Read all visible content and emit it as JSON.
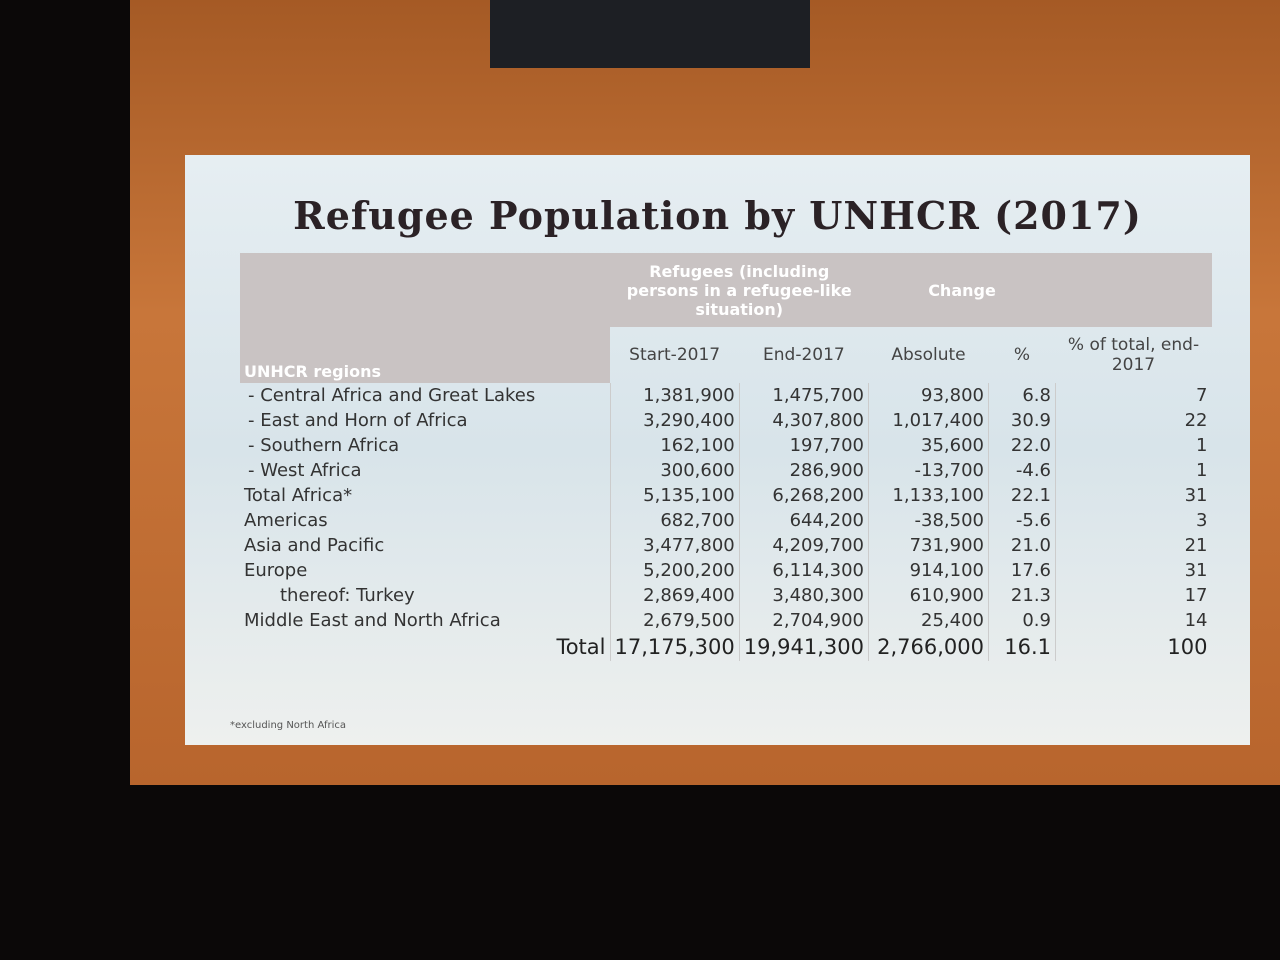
{
  "title": "Refugee Population by UNHCR (2017)",
  "table": {
    "group_headers": {
      "refugees": "Refugees (including persons in a refugee-like situation)",
      "change": "Change"
    },
    "row_header": "UNHCR regions",
    "columns": [
      "Start-2017",
      "End-2017",
      "Absolute",
      "%",
      "% of total, end-2017"
    ],
    "rows": [
      {
        "label": "- Central Africa and Great Lakes",
        "cells": [
          "1,381,900",
          "1,475,700",
          "93,800",
          "6.8",
          "7"
        ]
      },
      {
        "label": "- East and Horn of Africa",
        "cells": [
          "3,290,400",
          "4,307,800",
          "1,017,400",
          "30.9",
          "22"
        ]
      },
      {
        "label": "- Southern Africa",
        "cells": [
          "162,100",
          "197,700",
          "35,600",
          "22.0",
          "1"
        ]
      },
      {
        "label": "- West Africa",
        "cells": [
          "300,600",
          "286,900",
          "-13,700",
          "-4.6",
          "1"
        ]
      },
      {
        "label": "Total Africa*",
        "cells": [
          "5,135,100",
          "6,268,200",
          "1,133,100",
          "22.1",
          "31"
        ]
      },
      {
        "label": "Americas",
        "cells": [
          "682,700",
          "644,200",
          "-38,500",
          "-5.6",
          "3"
        ]
      },
      {
        "label": "Asia and Pacific",
        "cells": [
          "3,477,800",
          "4,209,700",
          "731,900",
          "21.0",
          "21"
        ]
      },
      {
        "label": "Europe",
        "cells": [
          "5,200,200",
          "6,114,300",
          "914,100",
          "17.6",
          "31"
        ]
      },
      {
        "label": "thereof: Turkey",
        "cells": [
          "2,869,400",
          "3,480,300",
          "610,900",
          "21.3",
          "17"
        ]
      },
      {
        "label": "Middle East and North Africa",
        "cells": [
          "2,679,500",
          "2,704,900",
          "25,400",
          "0.9",
          "14"
        ]
      }
    ],
    "total": {
      "label": "Total",
      "cells": [
        "17,175,300",
        "19,941,300",
        "2,766,000",
        "16.1",
        "100"
      ]
    }
  },
  "footnote": "*excluding North Africa"
}
